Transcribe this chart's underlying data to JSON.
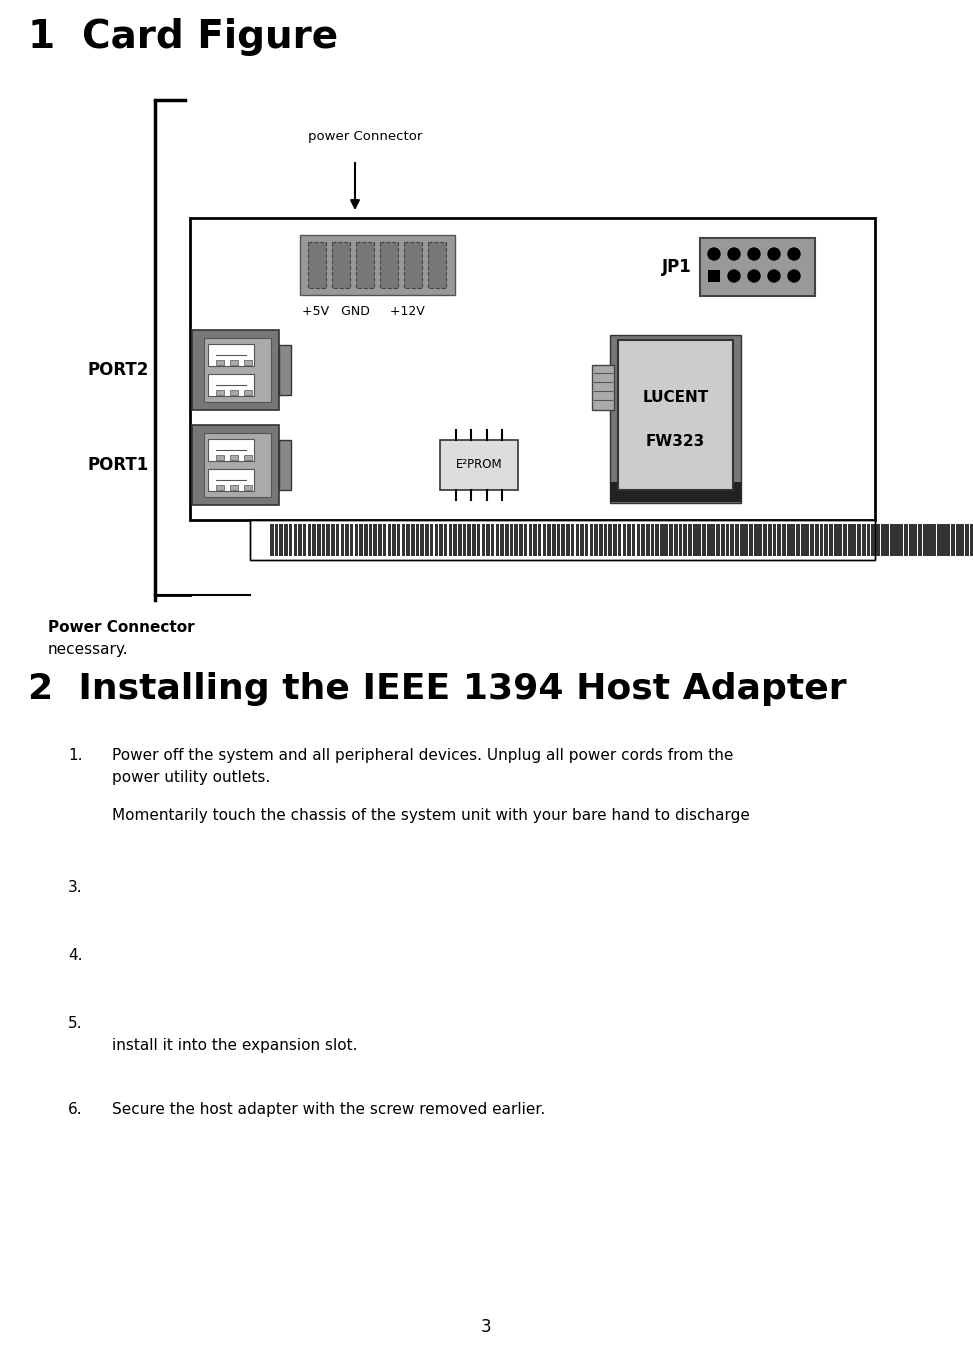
{
  "title1": "1  Card Figure",
  "title2": "2  Installing the IEEE 1394 Host Adapter",
  "power_connector_label": "power Connector",
  "jp1_label": "JP1",
  "port1_label": "PORT1",
  "port2_label": "PORT2",
  "lucent_label1": "LUCENT",
  "lucent_label2": "FW323",
  "e2prom_label": "E²PROM",
  "power_pins_label": "+5V  GND    +12V",
  "power_connector_bold": "Power Connector",
  "necessary_text": "necessary.",
  "item1_num": "1.",
  "item1_text": "Power off the system and all peripheral devices. Unplug all power cords from the",
  "item1_text2": "power utility outlets.",
  "item1b_text": "Momentarily touch the chassis of the system unit with your bare hand to discharge",
  "item3_num": "3.",
  "item4_num": "4.",
  "item5_num": "5.",
  "item5b_text": "install it into the expansion slot.",
  "item6_num": "6.",
  "item6_text": "Secure the host adapter with the screw removed earlier.",
  "page_num": "3",
  "bg_color": "#ffffff",
  "gray_med": "#888888",
  "gray_dark": "#555555",
  "gray_light": "#aaaaaa",
  "gray_lighter": "#cccccc",
  "gray_chip": "#bbbbbb",
  "black": "#000000"
}
